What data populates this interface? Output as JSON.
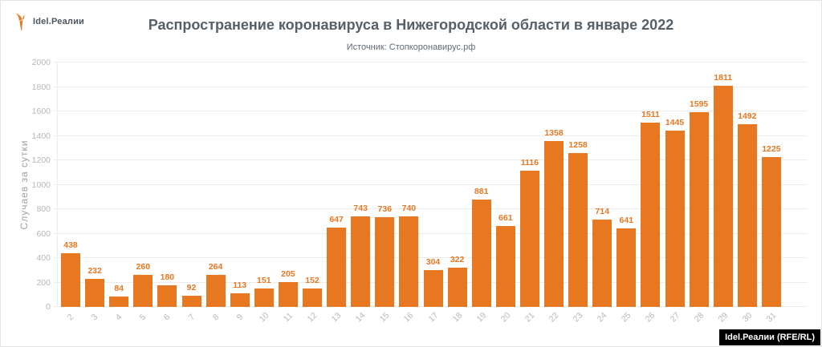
{
  "logo": {
    "brand": "Idel.Реалии"
  },
  "header": {
    "title": "Распространение коронавируса в Нижегородской области в январе 2022",
    "subtitle": "Источник: Стопкоронавирус.рф"
  },
  "watermark": {
    "label": "Idel.Реалии (RFE/RL)"
  },
  "colors": {
    "bar": "#e87722",
    "value_label": "#e87722",
    "title": "#566069",
    "axis_label": "#b3b7bb",
    "grid": "#ececec",
    "watermark_bg": "#000000",
    "watermark_text": "#ffffff",
    "logo_icon": "#e87722"
  },
  "chart_data": {
    "type": "bar",
    "title": "Распространение коронавируса в Нижегородской области в январе 2022",
    "subtitle": "Источник: Стопкоронавирус.рф",
    "categories": [
      "2",
      "3",
      "4",
      "5",
      "6",
      "7",
      "8",
      "9",
      "10",
      "11",
      "12",
      "13",
      "14",
      "15",
      "16",
      "17",
      "18",
      "19",
      "20",
      "21",
      "22",
      "23",
      "24",
      "25",
      "26",
      "27",
      "28",
      "29",
      "30",
      "31"
    ],
    "values": [
      438,
      232,
      84,
      260,
      180,
      92,
      264,
      113,
      151,
      205,
      152,
      647,
      743,
      736,
      740,
      304,
      322,
      881,
      661,
      1116,
      1358,
      1258,
      714,
      641,
      1511,
      1445,
      1595,
      1811,
      1492,
      1225
    ],
    "xlabel": "",
    "ylabel": "Случаев за сутки",
    "ylim": [
      0,
      2000
    ],
    "ytick_step": 200,
    "grid": "horizontal",
    "legend": "none",
    "bar_labels": true
  }
}
